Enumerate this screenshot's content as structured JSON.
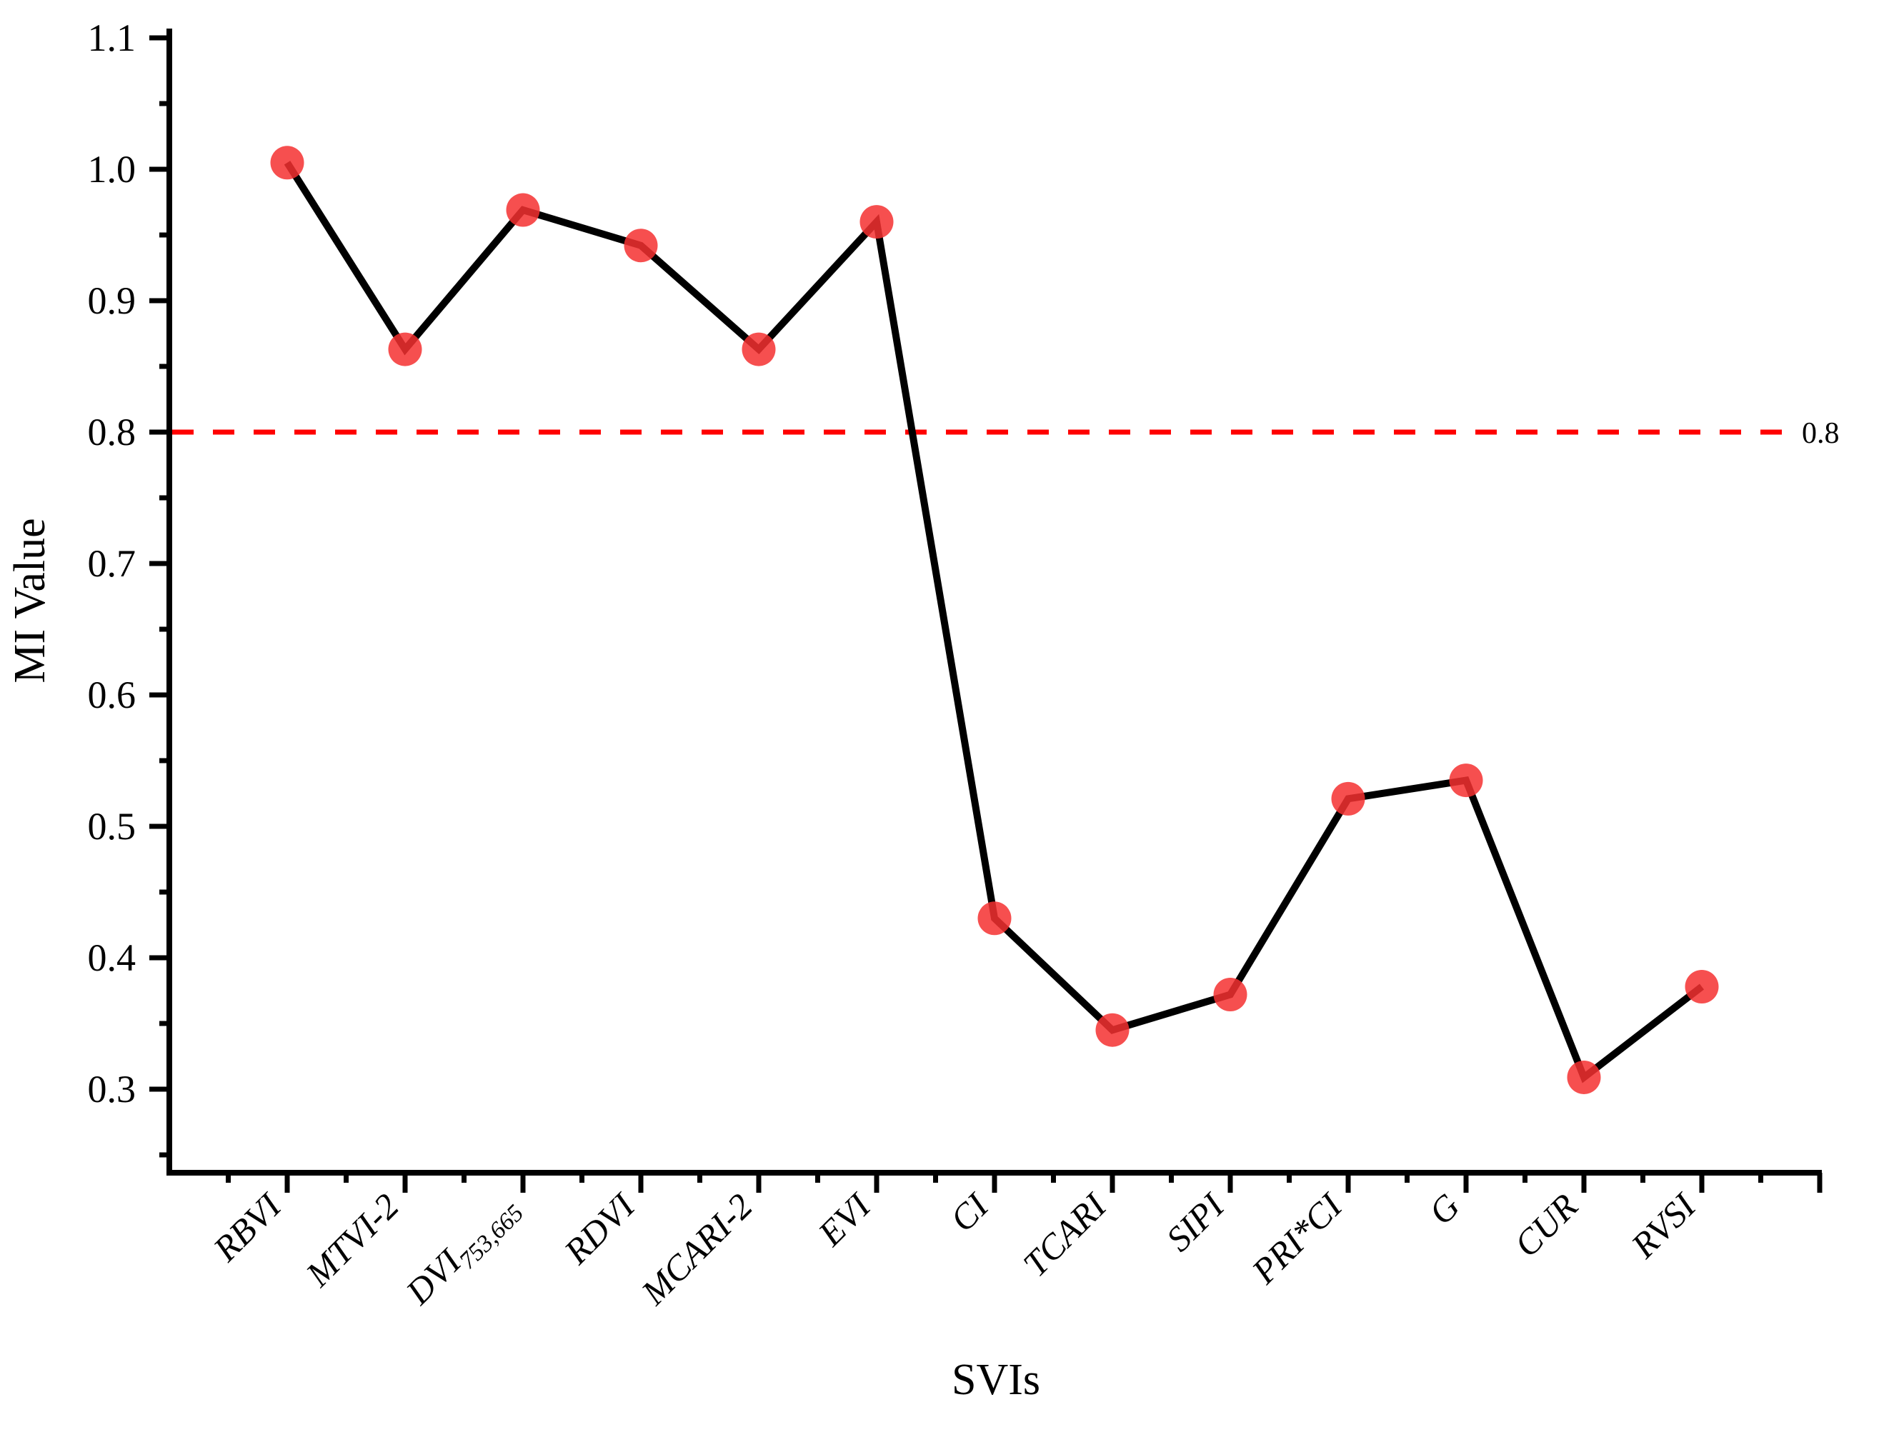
{
  "chart_data": {
    "type": "line",
    "title": "",
    "xlabel": "SVIs",
    "ylabel": "MI Value",
    "categories": [
      {
        "label": "RBVI",
        "subscript": ""
      },
      {
        "label": "MTVI-2",
        "subscript": ""
      },
      {
        "label": "DVI",
        "subscript": "753,665"
      },
      {
        "label": "RDVI",
        "subscript": ""
      },
      {
        "label": "MCARI-2",
        "subscript": ""
      },
      {
        "label": "EVI",
        "subscript": ""
      },
      {
        "label": "CI",
        "subscript": ""
      },
      {
        "label": "TCARI",
        "subscript": ""
      },
      {
        "label": "SIPI",
        "subscript": ""
      },
      {
        "label": "PRI*CI",
        "subscript": ""
      },
      {
        "label": "G",
        "subscript": ""
      },
      {
        "label": "CUR",
        "subscript": ""
      },
      {
        "label": "RVSI",
        "subscript": ""
      }
    ],
    "series": [
      {
        "name": "MI Value",
        "values": [
          1.005,
          0.863,
          0.969,
          0.942,
          0.863,
          0.96,
          0.43,
          0.345,
          0.372,
          0.521,
          0.535,
          0.309,
          0.378
        ],
        "line_color": "#000000",
        "marker": "circle",
        "marker_color": "#f53030"
      }
    ],
    "yticks": [
      0.3,
      0.4,
      0.5,
      0.6,
      0.7,
      0.8,
      0.9,
      1.0,
      1.1
    ],
    "ytick_minor_start": 0.25,
    "ytick_minor_step": 0.1,
    "ytick_minor_count": 9,
    "ylim": [
      0.235,
      1.107
    ],
    "reference_line": {
      "value": 0.8,
      "label": "0.8",
      "color": "#ff0000",
      "style": "dashed"
    },
    "grid": false,
    "legend": null
  }
}
